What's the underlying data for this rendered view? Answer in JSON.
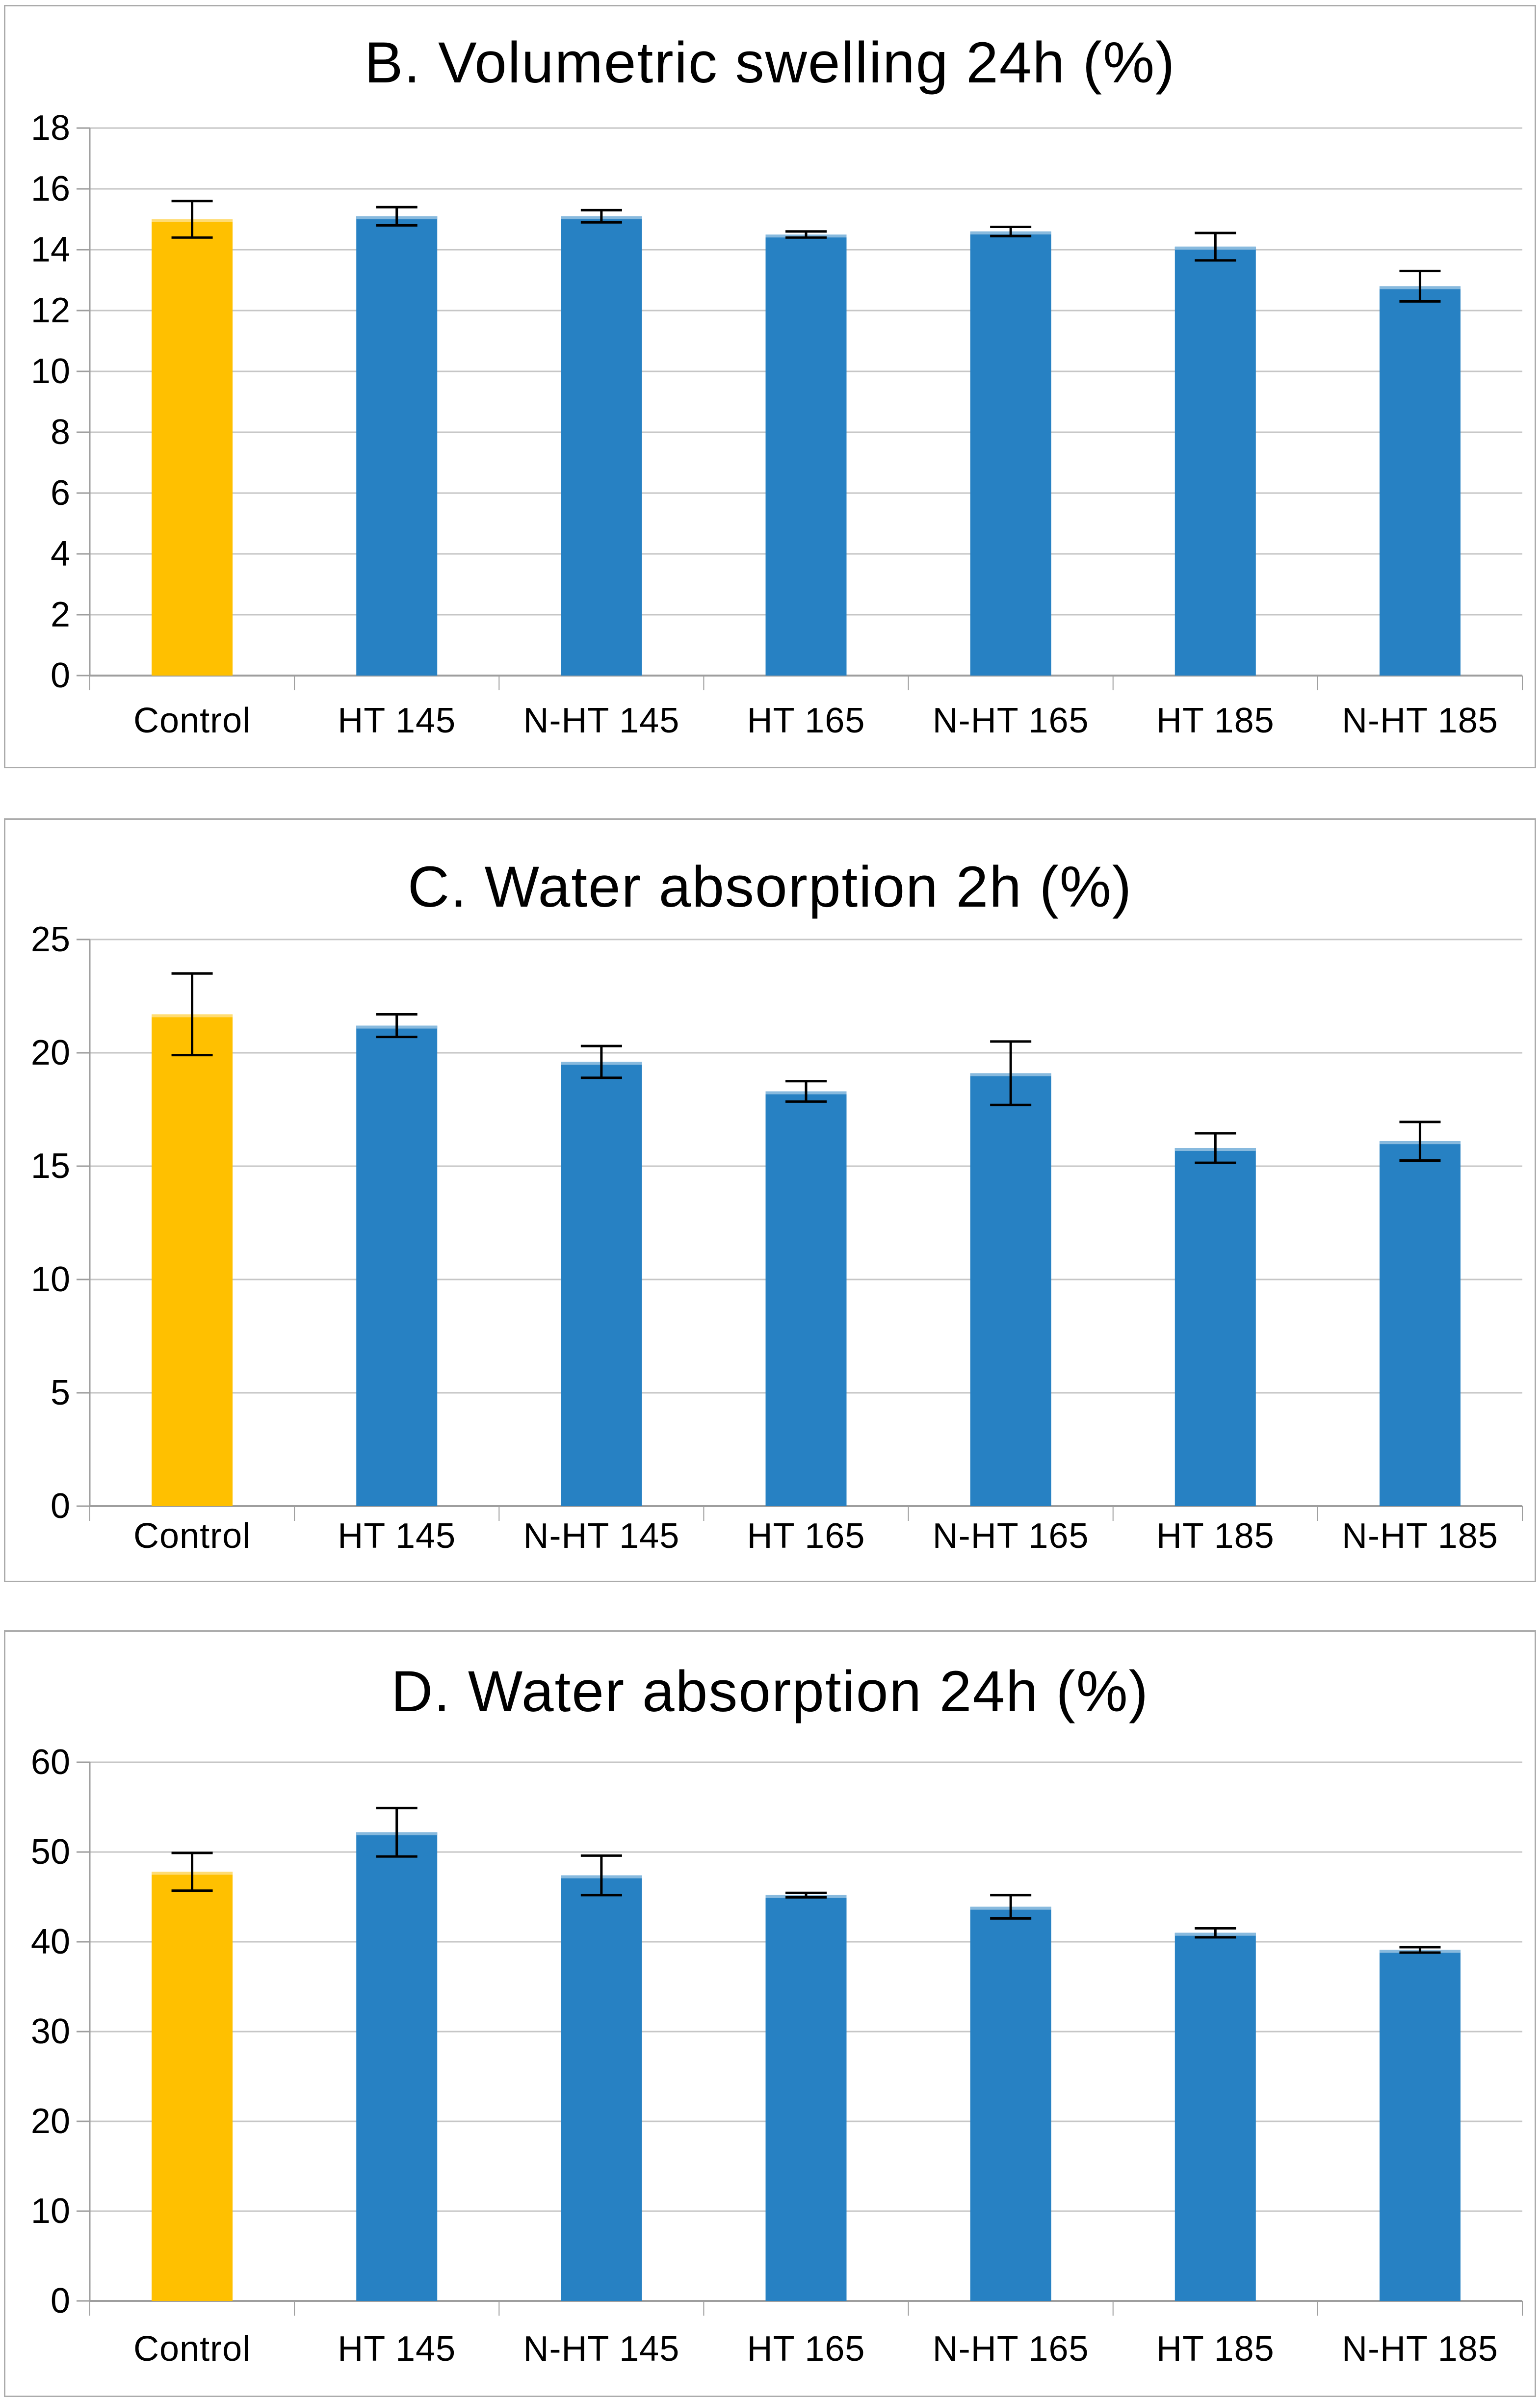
{
  "page": {
    "background_color": "#ffffff",
    "panel_border_color": "#ababab"
  },
  "chart_data": [
    {
      "type": "bar",
      "title": "B. Volumetric swelling 24h (%)",
      "categories": [
        "Control",
        "HT 145",
        "N-HT 145",
        "HT 165",
        "N-HT 165",
        "HT 185",
        "N-HT 185"
      ],
      "values": [
        15.0,
        15.1,
        15.1,
        14.5,
        14.6,
        14.1,
        12.8
      ],
      "errors": [
        0.6,
        0.3,
        0.2,
        0.1,
        0.15,
        0.45,
        0.5
      ],
      "bar_colors": [
        "#FFC000",
        "#2781C3",
        "#2781C3",
        "#2781C3",
        "#2781C3",
        "#2781C3",
        "#2781C3"
      ],
      "ylim": [
        0,
        18
      ],
      "ytick_step": 2,
      "xlabel": "",
      "ylabel": "",
      "grid": true,
      "legend": "none",
      "gridline_color": "#c6c6c6",
      "axis_color": "#9e9e9e",
      "error_bar_color": "#000000"
    },
    {
      "type": "bar",
      "title": "C. Water absorption 2h (%)",
      "categories": [
        "Control",
        "HT 145",
        "N-HT 145",
        "HT 165",
        "N-HT 165",
        "HT 185",
        "N-HT 185"
      ],
      "values": [
        21.7,
        21.2,
        19.6,
        18.3,
        19.1,
        15.8,
        16.1
      ],
      "errors": [
        1.8,
        0.5,
        0.7,
        0.45,
        1.4,
        0.65,
        0.85
      ],
      "bar_colors": [
        "#FFC000",
        "#2781C3",
        "#2781C3",
        "#2781C3",
        "#2781C3",
        "#2781C3",
        "#2781C3"
      ],
      "ylim": [
        0,
        25
      ],
      "ytick_step": 5,
      "xlabel": "",
      "ylabel": "",
      "grid": true,
      "legend": "none",
      "gridline_color": "#c6c6c6",
      "axis_color": "#9e9e9e",
      "error_bar_color": "#000000"
    },
    {
      "type": "bar",
      "title": "D. Water absorption 24h (%)",
      "categories": [
        "Control",
        "HT 145",
        "N-HT 145",
        "HT 165",
        "N-HT 165",
        "HT 185",
        "N-HT 185"
      ],
      "values": [
        47.8,
        52.2,
        47.4,
        45.2,
        43.9,
        41.0,
        39.1
      ],
      "errors": [
        2.1,
        2.7,
        2.2,
        0.25,
        1.3,
        0.5,
        0.3
      ],
      "bar_colors": [
        "#FFC000",
        "#2781C3",
        "#2781C3",
        "#2781C3",
        "#2781C3",
        "#2781C3",
        "#2781C3"
      ],
      "ylim": [
        0,
        60
      ],
      "ytick_step": 10,
      "xlabel": "",
      "ylabel": "",
      "grid": true,
      "legend": "none",
      "gridline_color": "#c6c6c6",
      "axis_color": "#9e9e9e",
      "error_bar_color": "#000000"
    }
  ]
}
